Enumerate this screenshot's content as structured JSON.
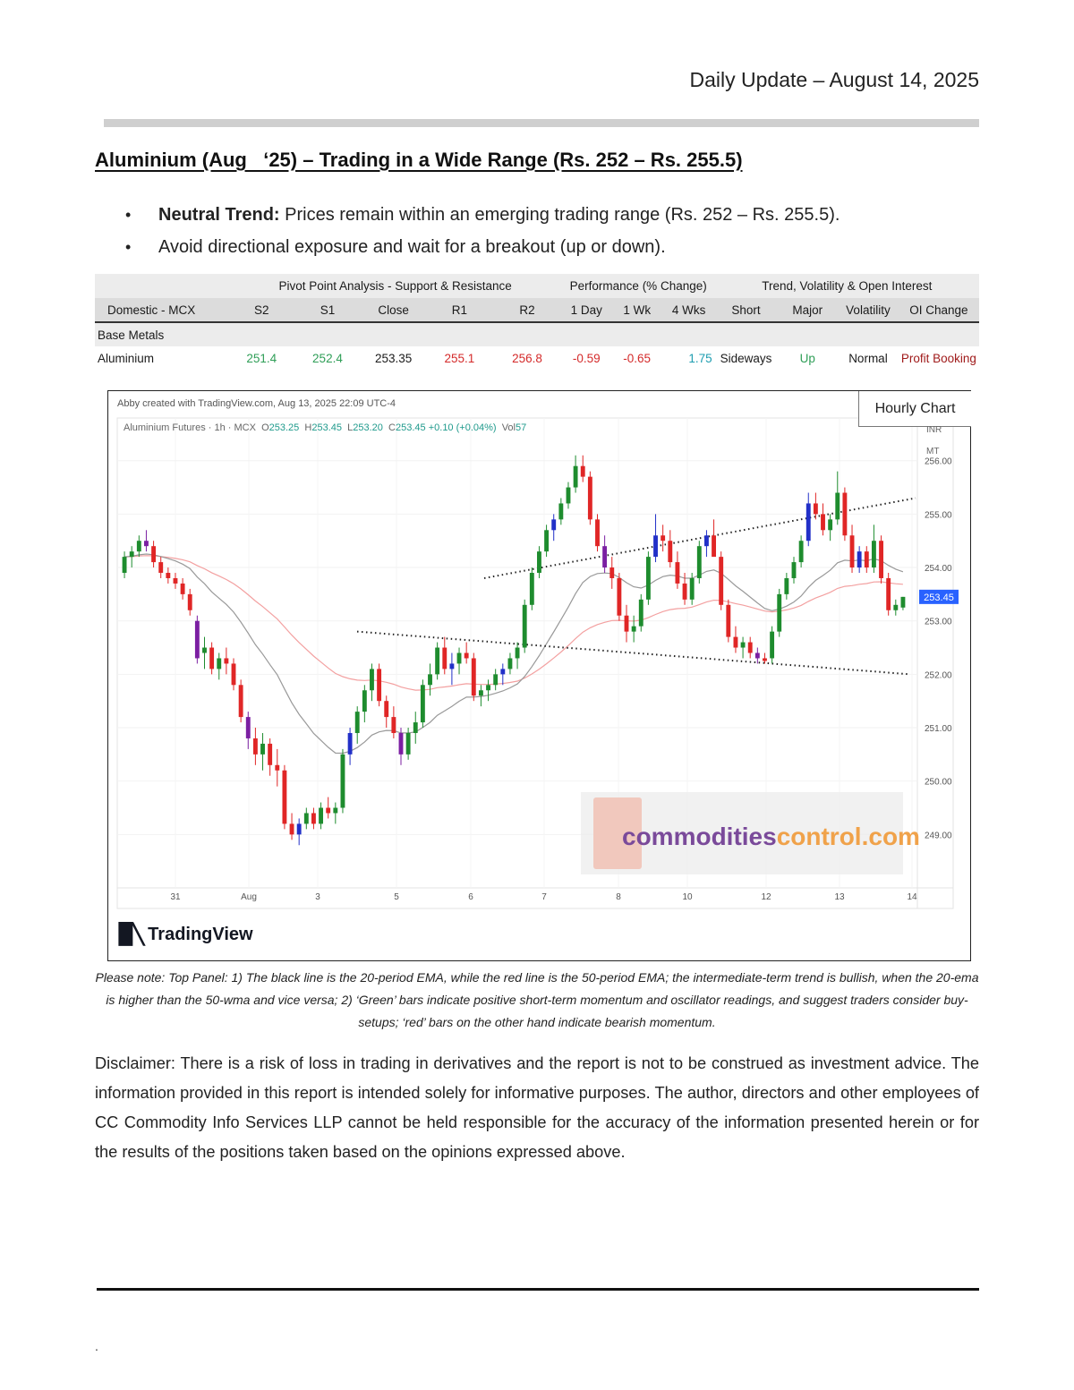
{
  "header": {
    "date": "Daily Update – August 14, 2025"
  },
  "title": "Aluminium (Aug   ‘25) – Trading in a Wide Range (Rs. 252 – Rs. 255.5)",
  "bullets": [
    {
      "bold": "Neutral Trend:",
      "text": " Prices remain within an emerging trading range (Rs. 252 – Rs. 255.5)."
    },
    {
      "bold": "",
      "text": "Avoid directional exposure and wait for a breakout (up or down)."
    }
  ],
  "table": {
    "groups": [
      "Pivot Point Analysis - Support & Resistance",
      "Performance (% Change)",
      "Trend, Volatility & Open Interest"
    ],
    "columns": [
      "Domestic - MCX",
      "S2",
      "S1",
      "Close",
      "R1",
      "R2",
      "1 Day",
      "1 Wk",
      "4 Wks",
      "Short",
      "Major",
      "Volatility",
      "OI Change"
    ],
    "section": "Base Metals",
    "row": [
      "Aluminium",
      "251.4",
      "252.4",
      "253.35",
      "255.1",
      "256.8",
      "-0.59",
      "-0.65",
      "1.75",
      "Sideways",
      "Up",
      "Normal",
      "Profit Booking"
    ]
  },
  "chart": {
    "credit": "Abby created with TradingView.com, Aug 13, 2025 22:09 UTC-4",
    "symbol": "Aluminium Futures · 1h · MCX",
    "ohlc": {
      "o_label": "O",
      "o": "253.25",
      "h_label": "H",
      "h": "253.45",
      "l_label": "L",
      "l": "253.20",
      "c_label": "C",
      "c": "253.45",
      "change": "+0.10 (+0.04%)",
      "vol_label": "Vol",
      "vol": "57"
    },
    "panel_label": "Hourly Chart",
    "unit_line1": "INR",
    "unit_line2": "MT",
    "last_price_label": "253.45",
    "watermark": {
      "part1": "commodities",
      "part2": "control.com"
    },
    "brand": "TradingView",
    "colors": {
      "up": "#1e8c2e",
      "up_alt": "#2230c8",
      "down": "#e02626",
      "down_alt": "#7b1fa2",
      "ema20": "#999999",
      "ema50": "#f3a0a0",
      "price_tag": "#2962ff"
    }
  },
  "chart_data": {
    "type": "candlestick",
    "title": "Aluminium Futures · 1h · MCX",
    "x_ticks": [
      "31",
      "Aug",
      "3",
      "5",
      "6",
      "7",
      "8",
      "10",
      "12",
      "13",
      "14"
    ],
    "y_ticks": [
      "256.00",
      "255.00",
      "254.00",
      "253.00",
      "252.00",
      "251.00",
      "250.00",
      "249.00"
    ],
    "ylim": [
      248.0,
      256.8
    ],
    "last_price": 253.45,
    "series": [
      {
        "name": "",
        "kind": "ohlc",
        "description_free": true,
        "points": [
          [
            253.9,
            254.3,
            253.8,
            254.2
          ],
          [
            254.2,
            254.4,
            254.0,
            254.3
          ],
          [
            254.3,
            254.6,
            254.2,
            254.5
          ],
          [
            254.5,
            254.7,
            254.3,
            254.4
          ],
          [
            254.4,
            254.5,
            254.0,
            254.1
          ],
          [
            254.1,
            254.2,
            253.8,
            253.9
          ],
          [
            253.9,
            254.0,
            253.7,
            253.8
          ],
          [
            253.8,
            253.9,
            253.6,
            253.7
          ],
          [
            253.7,
            253.8,
            253.4,
            253.5
          ],
          [
            253.5,
            253.6,
            253.1,
            253.2
          ],
          [
            253.0,
            253.1,
            252.2,
            252.3
          ],
          [
            252.4,
            252.7,
            252.1,
            252.5
          ],
          [
            252.5,
            252.6,
            252.0,
            252.1
          ],
          [
            252.1,
            252.4,
            251.9,
            252.3
          ],
          [
            252.3,
            252.5,
            252.0,
            252.2
          ],
          [
            252.2,
            252.3,
            251.7,
            251.8
          ],
          [
            251.8,
            251.9,
            251.1,
            251.2
          ],
          [
            251.2,
            251.3,
            250.6,
            250.8
          ],
          [
            250.8,
            251.0,
            250.3,
            250.5
          ],
          [
            250.5,
            250.9,
            250.2,
            250.7
          ],
          [
            250.7,
            250.8,
            250.1,
            250.3
          ],
          [
            250.3,
            250.6,
            249.9,
            250.2
          ],
          [
            250.2,
            250.3,
            249.1,
            249.2
          ],
          [
            249.2,
            249.4,
            248.9,
            249.0
          ],
          [
            249.0,
            249.3,
            248.8,
            249.2
          ],
          [
            249.2,
            249.5,
            249.1,
            249.4
          ],
          [
            249.4,
            249.5,
            249.1,
            249.2
          ],
          [
            249.2,
            249.6,
            249.1,
            249.5
          ],
          [
            249.5,
            249.7,
            249.3,
            249.4
          ],
          [
            249.4,
            249.6,
            249.2,
            249.5
          ],
          [
            249.5,
            250.6,
            249.4,
            250.5
          ],
          [
            250.5,
            251.0,
            250.3,
            250.9
          ],
          [
            250.9,
            251.4,
            250.7,
            251.3
          ],
          [
            251.3,
            251.8,
            251.1,
            251.7
          ],
          [
            251.7,
            252.2,
            251.5,
            252.1
          ],
          [
            252.1,
            252.2,
            251.4,
            251.5
          ],
          [
            251.5,
            251.6,
            251.0,
            251.2
          ],
          [
            251.2,
            251.4,
            250.8,
            250.9
          ],
          [
            250.9,
            251.0,
            250.3,
            250.5
          ],
          [
            250.5,
            251.0,
            250.4,
            250.9
          ],
          [
            250.9,
            251.3,
            250.7,
            251.1
          ],
          [
            251.1,
            251.9,
            251.0,
            251.8
          ],
          [
            251.8,
            252.2,
            251.6,
            252.0
          ],
          [
            252.0,
            252.6,
            251.9,
            252.5
          ],
          [
            252.5,
            252.7,
            252.0,
            252.1
          ],
          [
            252.1,
            252.4,
            251.8,
            252.2
          ],
          [
            252.2,
            252.5,
            252.0,
            252.4
          ],
          [
            252.4,
            252.6,
            252.2,
            252.3
          ],
          [
            252.3,
            252.4,
            251.5,
            251.6
          ],
          [
            251.6,
            251.8,
            251.4,
            251.7
          ],
          [
            251.7,
            251.9,
            251.5,
            251.8
          ],
          [
            251.8,
            252.1,
            251.7,
            252.0
          ],
          [
            252.0,
            252.2,
            251.8,
            252.1
          ],
          [
            252.1,
            252.4,
            252.0,
            252.3
          ],
          [
            252.3,
            252.6,
            252.1,
            252.5
          ],
          [
            252.5,
            253.4,
            252.4,
            253.3
          ],
          [
            253.3,
            254.0,
            253.2,
            253.9
          ],
          [
            253.9,
            254.4,
            253.8,
            254.3
          ],
          [
            254.3,
            254.8,
            254.2,
            254.7
          ],
          [
            254.7,
            255.0,
            254.5,
            254.9
          ],
          [
            254.9,
            255.3,
            254.8,
            255.2
          ],
          [
            255.2,
            255.6,
            255.1,
            255.5
          ],
          [
            255.5,
            256.1,
            255.4,
            255.9
          ],
          [
            255.9,
            256.1,
            255.6,
            255.7
          ],
          [
            255.7,
            255.8,
            254.8,
            254.9
          ],
          [
            254.9,
            255.0,
            254.3,
            254.4
          ],
          [
            254.4,
            254.6,
            253.9,
            254.0
          ],
          [
            254.0,
            254.2,
            253.6,
            253.8
          ],
          [
            253.8,
            253.9,
            253.0,
            253.1
          ],
          [
            253.1,
            253.3,
            252.6,
            252.8
          ],
          [
            252.8,
            253.1,
            252.6,
            252.9
          ],
          [
            252.9,
            253.5,
            252.8,
            253.4
          ],
          [
            253.4,
            254.3,
            253.3,
            254.2
          ],
          [
            254.2,
            255.0,
            254.1,
            254.6
          ],
          [
            254.6,
            254.8,
            254.3,
            254.5
          ],
          [
            254.5,
            254.7,
            254.0,
            254.1
          ],
          [
            254.1,
            254.3,
            253.6,
            253.7
          ],
          [
            253.7,
            253.9,
            253.3,
            253.4
          ],
          [
            253.4,
            253.9,
            253.3,
            253.8
          ],
          [
            253.8,
            254.5,
            253.7,
            254.4
          ],
          [
            254.4,
            254.7,
            254.2,
            254.6
          ],
          [
            254.6,
            254.9,
            254.3,
            254.2
          ],
          [
            254.2,
            254.3,
            253.2,
            253.3
          ],
          [
            253.3,
            253.4,
            252.6,
            252.7
          ],
          [
            252.7,
            252.9,
            252.4,
            252.5
          ],
          [
            252.5,
            252.7,
            252.3,
            252.6
          ],
          [
            252.6,
            252.7,
            252.3,
            252.4
          ],
          [
            252.4,
            252.5,
            252.2,
            252.3
          ],
          [
            252.3,
            252.4,
            252.2,
            252.25
          ],
          [
            252.3,
            252.9,
            252.2,
            252.8
          ],
          [
            252.8,
            253.6,
            252.7,
            253.5
          ],
          [
            253.5,
            253.9,
            253.4,
            253.8
          ],
          [
            253.8,
            254.2,
            253.7,
            254.1
          ],
          [
            254.1,
            254.6,
            254.0,
            254.5
          ],
          [
            254.5,
            255.4,
            254.4,
            255.2
          ],
          [
            255.2,
            255.4,
            254.9,
            255.0
          ],
          [
            255.0,
            255.2,
            254.6,
            254.7
          ],
          [
            254.7,
            255.0,
            254.5,
            254.9
          ],
          [
            254.9,
            255.8,
            254.8,
            255.4
          ],
          [
            255.4,
            255.5,
            254.5,
            254.6
          ],
          [
            254.6,
            254.8,
            253.9,
            254.0
          ],
          [
            254.0,
            254.4,
            253.9,
            254.3
          ],
          [
            254.3,
            254.4,
            253.9,
            254.0
          ],
          [
            254.0,
            254.8,
            253.9,
            254.5
          ],
          [
            254.5,
            254.6,
            253.7,
            253.8
          ],
          [
            253.8,
            253.9,
            253.1,
            253.2
          ],
          [
            253.2,
            253.4,
            253.1,
            253.3
          ],
          [
            253.25,
            253.45,
            253.2,
            253.45
          ]
        ]
      }
    ],
    "trendlines": [
      {
        "name": "",
        "from": [
          253.8,
          0.0
        ],
        "to": [
          255.3,
          1.0
        ]
      },
      {
        "name": "",
        "from": [
          252.8,
          0.0
        ],
        "to": [
          252.0,
          1.0
        ]
      }
    ]
  },
  "note": "Please note: Top Panel: 1) The black line is the 20-period EMA, while the red line is the 50-period EMA; the intermediate-term trend is bullish, when the 20-ema is higher than the 50-wma and vice versa; 2)  ‘Green’  bars indicate positive short-term momentum and oscillator readings, and suggest traders consider buy-setups;  ‘red’  bars on the other hand indicate bearish momentum.",
  "disclaimer": "Disclaimer: There is a risk of loss in trading in derivatives and the report is not to be construed as investment advice. The information provided in this report is intended solely for informative purposes. The author, directors and other employees of CC Commodity Info Services LLP cannot be held responsible for the accuracy of the information presented herein or for the results of the positions taken based on the opinions expressed above.",
  "footer": {
    "mark": "."
  }
}
